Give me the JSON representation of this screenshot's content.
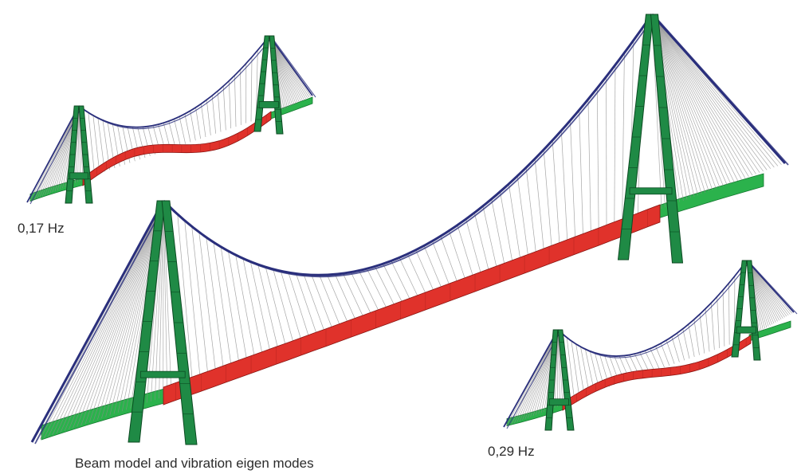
{
  "labels": {
    "mode_a": "0,17 Hz",
    "mode_b": "0,29 Hz",
    "caption": "Beam model and vibration eigen modes"
  },
  "colors": {
    "pylon": "#1f8a45",
    "pylon_edge": "#0c4a22",
    "deck_displaced": "#e0322b",
    "deck_edge": "#8a1512",
    "deck_static": "#2bb24c",
    "main_cable": "#2a2f7c",
    "hanger": "#8a8a8a"
  },
  "icons": [
    "pylon-icon",
    "deck-icon",
    "cable-icon"
  ]
}
